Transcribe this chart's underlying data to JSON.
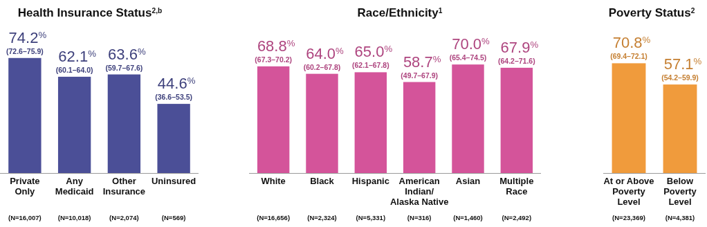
{
  "chart_data": [
    {
      "type": "bar",
      "title": "Health Insurance Status$^{2,b}$",
      "categories": [
        "Private\nOnly",
        "Any\nMedicaid",
        "Other\nInsurance",
        "Uninsured"
      ],
      "values": [
        74.2,
        62.1,
        63.6,
        44.6
      ],
      "color": "#4b4f97",
      "value_labels": [
        "74.2$^{%}$",
        "62.1$^{%}$",
        "63.6$^{%}$",
        "44.6$^{%}$"
      ],
      "annotations": [
        {
          "text": "(72.6–75.9)",
          "x": "Private\nOnly",
          "y": 74.2
        },
        {
          "text": "(60.1–64.0)",
          "x": "Any\nMedicaid",
          "y": 62.1
        },
        {
          "text": "(59.7–67.6)",
          "x": "Other\nInsurance",
          "y": 63.6
        },
        {
          "text": "(36.6–53.5)",
          "x": "Uninsured",
          "y": 44.6
        },
        "(N=16,007)",
        "(N=10,018)",
        "(N=2,074)",
        "(N=569)"
      ]
    },
    {
      "type": "bar",
      "title": "Race/Ethnicity$^{1}$",
      "categories": [
        "White",
        "Black",
        "Hispanic",
        "American\nIndian/\nAlaska Native",
        "Asian",
        "Multiple\nRace"
      ],
      "values": [
        68.8,
        64.0,
        65.0,
        58.7,
        70.0,
        67.9
      ],
      "color": "#d4549a",
      "value_labels": [
        "68.8$^{%}$",
        "64.0$^{%}$",
        "65.0$^{%}$",
        "58.7$^{%}$",
        "70.0$^{%}$",
        "67.9$^{%}$"
      ],
      "annotations": [
        {
          "text": "(67.3–70.2)",
          "x": "White",
          "y": 68.8
        },
        {
          "text": "(60.2–67.8)",
          "x": "Black",
          "y": 64.0
        },
        {
          "text": "(62.1–67.8)",
          "x": "Hispanic",
          "y": 65.0
        },
        {
          "text": "(49.7–67.9)",
          "x": "American\nIndian/\nAlaska Native",
          "y": 58.7
        },
        {
          "text": "(65.4–74.5)",
          "x": "Asian",
          "y": 70.0
        },
        {
          "text": "(64.2–71.6)",
          "x": "Multiple\nRace",
          "y": 67.9
        },
        "(N=16,656)",
        "(N=2,324)",
        "(N=5,331)",
        "(N=316)",
        "(N=1,460)",
        "(N=2,492)"
      ]
    },
    {
      "type": "bar",
      "title": "Poverty Status$^{2}$",
      "categories": [
        "At or Above\nPoverty\nLevel",
        "Below\nPoverty\nLevel"
      ],
      "values": [
        70.8,
        57.1
      ],
      "color": "#f09b3c",
      "value_labels": [
        "70.8$^{%}$",
        "57.1$^{%}$"
      ],
      "annotations": [
        {
          "text": "(69.4–72.1)",
          "x": "At or Above\nPoverty\nLevel",
          "y": 70.8
        },
        {
          "text": "(54.2–59.9)",
          "x": "Below\nPoverty\nLevel",
          "y": 57.1
        },
        "(N=23,369)",
        "(N=4,381)"
      ]
    }
  ]
}
